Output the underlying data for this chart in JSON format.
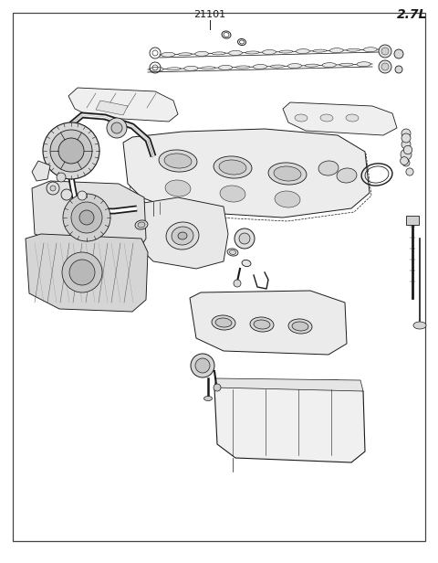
{
  "title_label": "21101",
  "engine_label": "2.7L",
  "background_color": "#ffffff",
  "border_color": "#333333",
  "line_color": "#1a1a1a",
  "fig_width": 4.8,
  "fig_height": 6.16,
  "dpi": 100
}
